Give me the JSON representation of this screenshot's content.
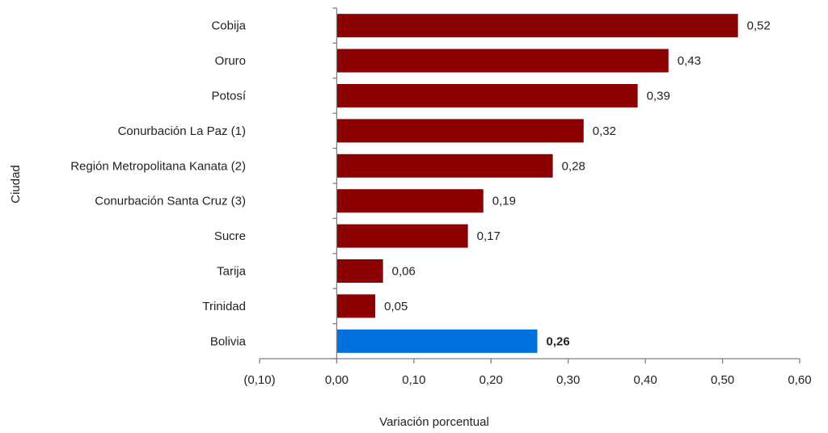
{
  "chart_data": {
    "type": "bar",
    "orientation": "horizontal",
    "categories": [
      "Cobija",
      "Oruro",
      "Potosí",
      "Conurbación La Paz (1)",
      "Región Metropolitana Kanata (2)",
      "Conurbación Santa Cruz (3)",
      "Sucre",
      "Tarija",
      "Trinidad",
      "Bolivia"
    ],
    "values": [
      0.52,
      0.43,
      0.39,
      0.32,
      0.28,
      0.19,
      0.17,
      0.06,
      0.05,
      0.26
    ],
    "value_labels": [
      "0,52",
      "0,43",
      "0,39",
      "0,32",
      "0,28",
      "0,19",
      "0,17",
      "0,06",
      "0,05",
      "0,26"
    ],
    "highlight_category": "Bolivia",
    "xlim": [
      -0.1,
      0.6
    ],
    "xticks": [
      -0.1,
      0,
      0.1,
      0.2,
      0.3,
      0.4,
      0.5,
      0.6
    ],
    "xtick_labels": [
      "(0,10)",
      "0,00",
      "0,10",
      "0,20",
      "0,30",
      "0,40",
      "0,50",
      "0,60"
    ],
    "xlabel": "Variación porcentual",
    "ylabel": "Ciudad",
    "grid": false,
    "legend": "none",
    "colors": {
      "bar": "#8b0000",
      "highlight": "#0070dd",
      "axis": "#7f7f7f",
      "text": "#222222"
    }
  }
}
